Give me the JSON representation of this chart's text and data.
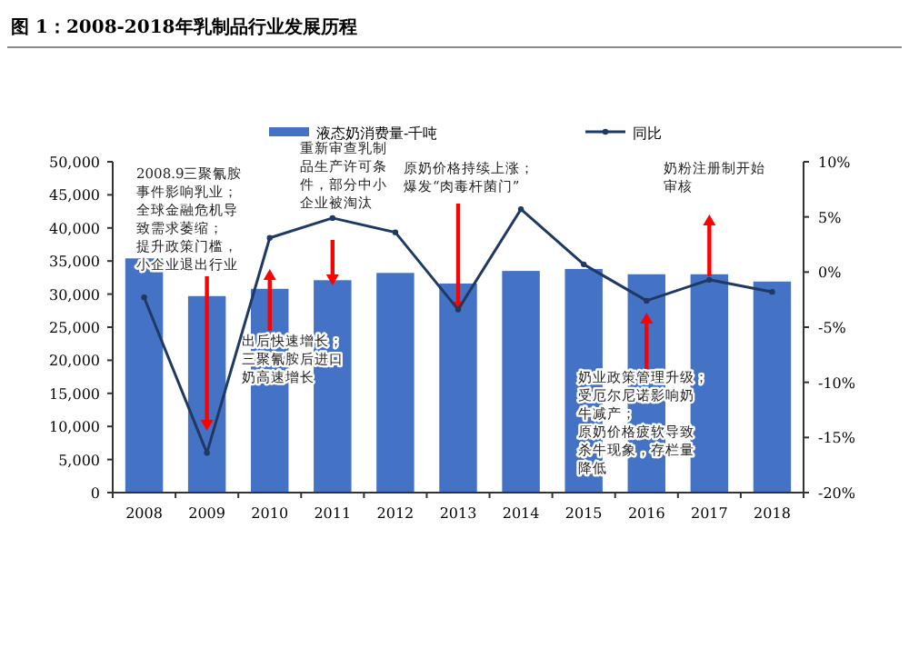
{
  "chart_data": {
    "type": "bar",
    "title": "图 1：2008-2018年乳制品行业发展历程",
    "categories": [
      "2008",
      "2009",
      "2010",
      "2011",
      "2012",
      "2013",
      "2014",
      "2015",
      "2016",
      "2017",
      "2018"
    ],
    "series": [
      {
        "name": "液态奶消费量-千吨",
        "color": "#4472c4",
        "values": [
          35400,
          29700,
          30800,
          32100,
          33200,
          31600,
          33500,
          33800,
          33000,
          33000,
          31900
        ]
      },
      {
        "name": "同比",
        "type": "line",
        "axis": "y2",
        "marker": "circle",
        "color": "#1f3864",
        "values": [
          -2.3,
          -16.4,
          3.1,
          4.9,
          3.6,
          -3.4,
          5.7,
          0.7,
          -2.6,
          -0.7,
          -1.8
        ]
      }
    ],
    "ylim": [
      0,
      50000
    ],
    "yticks": [
      {
        "value": 0,
        "label": "0"
      },
      {
        "value": 5000,
        "label": "5,000"
      },
      {
        "value": 10000,
        "label": "10,000"
      },
      {
        "value": 15000,
        "label": "15,000"
      },
      {
        "value": 20000,
        "label": "20,000"
      },
      {
        "value": 25000,
        "label": "25,000"
      },
      {
        "value": 30000,
        "label": "30,000"
      },
      {
        "value": 35000,
        "label": "35,000"
      },
      {
        "value": 40000,
        "label": "40,000"
      },
      {
        "value": 45000,
        "label": "45,000"
      },
      {
        "value": 50000,
        "label": "50,000"
      }
    ],
    "y2lim": [
      -20,
      10
    ],
    "y2ticks": [
      {
        "value": -20,
        "label": "-20%"
      },
      {
        "value": -15,
        "label": "-15%"
      },
      {
        "value": -10,
        "label": "-10%"
      },
      {
        "value": -5,
        "label": "-5%"
      },
      {
        "value": 0,
        "label": "0%"
      },
      {
        "value": 5,
        "label": "5%"
      },
      {
        "value": 10,
        "label": "10%"
      }
    ],
    "grid": false,
    "legend": "top",
    "annotations": [
      "2008.9三聚氰胺事件影响乳业；全球金融危机导致需求萎缩；提升政策门槛，小企业退出行业",
      "出后快速增长；三聚氰胺后进口奶高速增长",
      "重新审查乳制品生产许可条件，部分中小企业被淘汰",
      {
        "text": "原奶价格持续上涨；爆发“肉毒杆菌门”",
        "x": "2013",
        "y": 27200
      },
      "奶业政策管理升级；受厄尔尼诺影响奶牛减产；原奶价格疲软导致杀牛现象，存栏量降低",
      "奶粉注册制开始审核"
    ]
  }
}
